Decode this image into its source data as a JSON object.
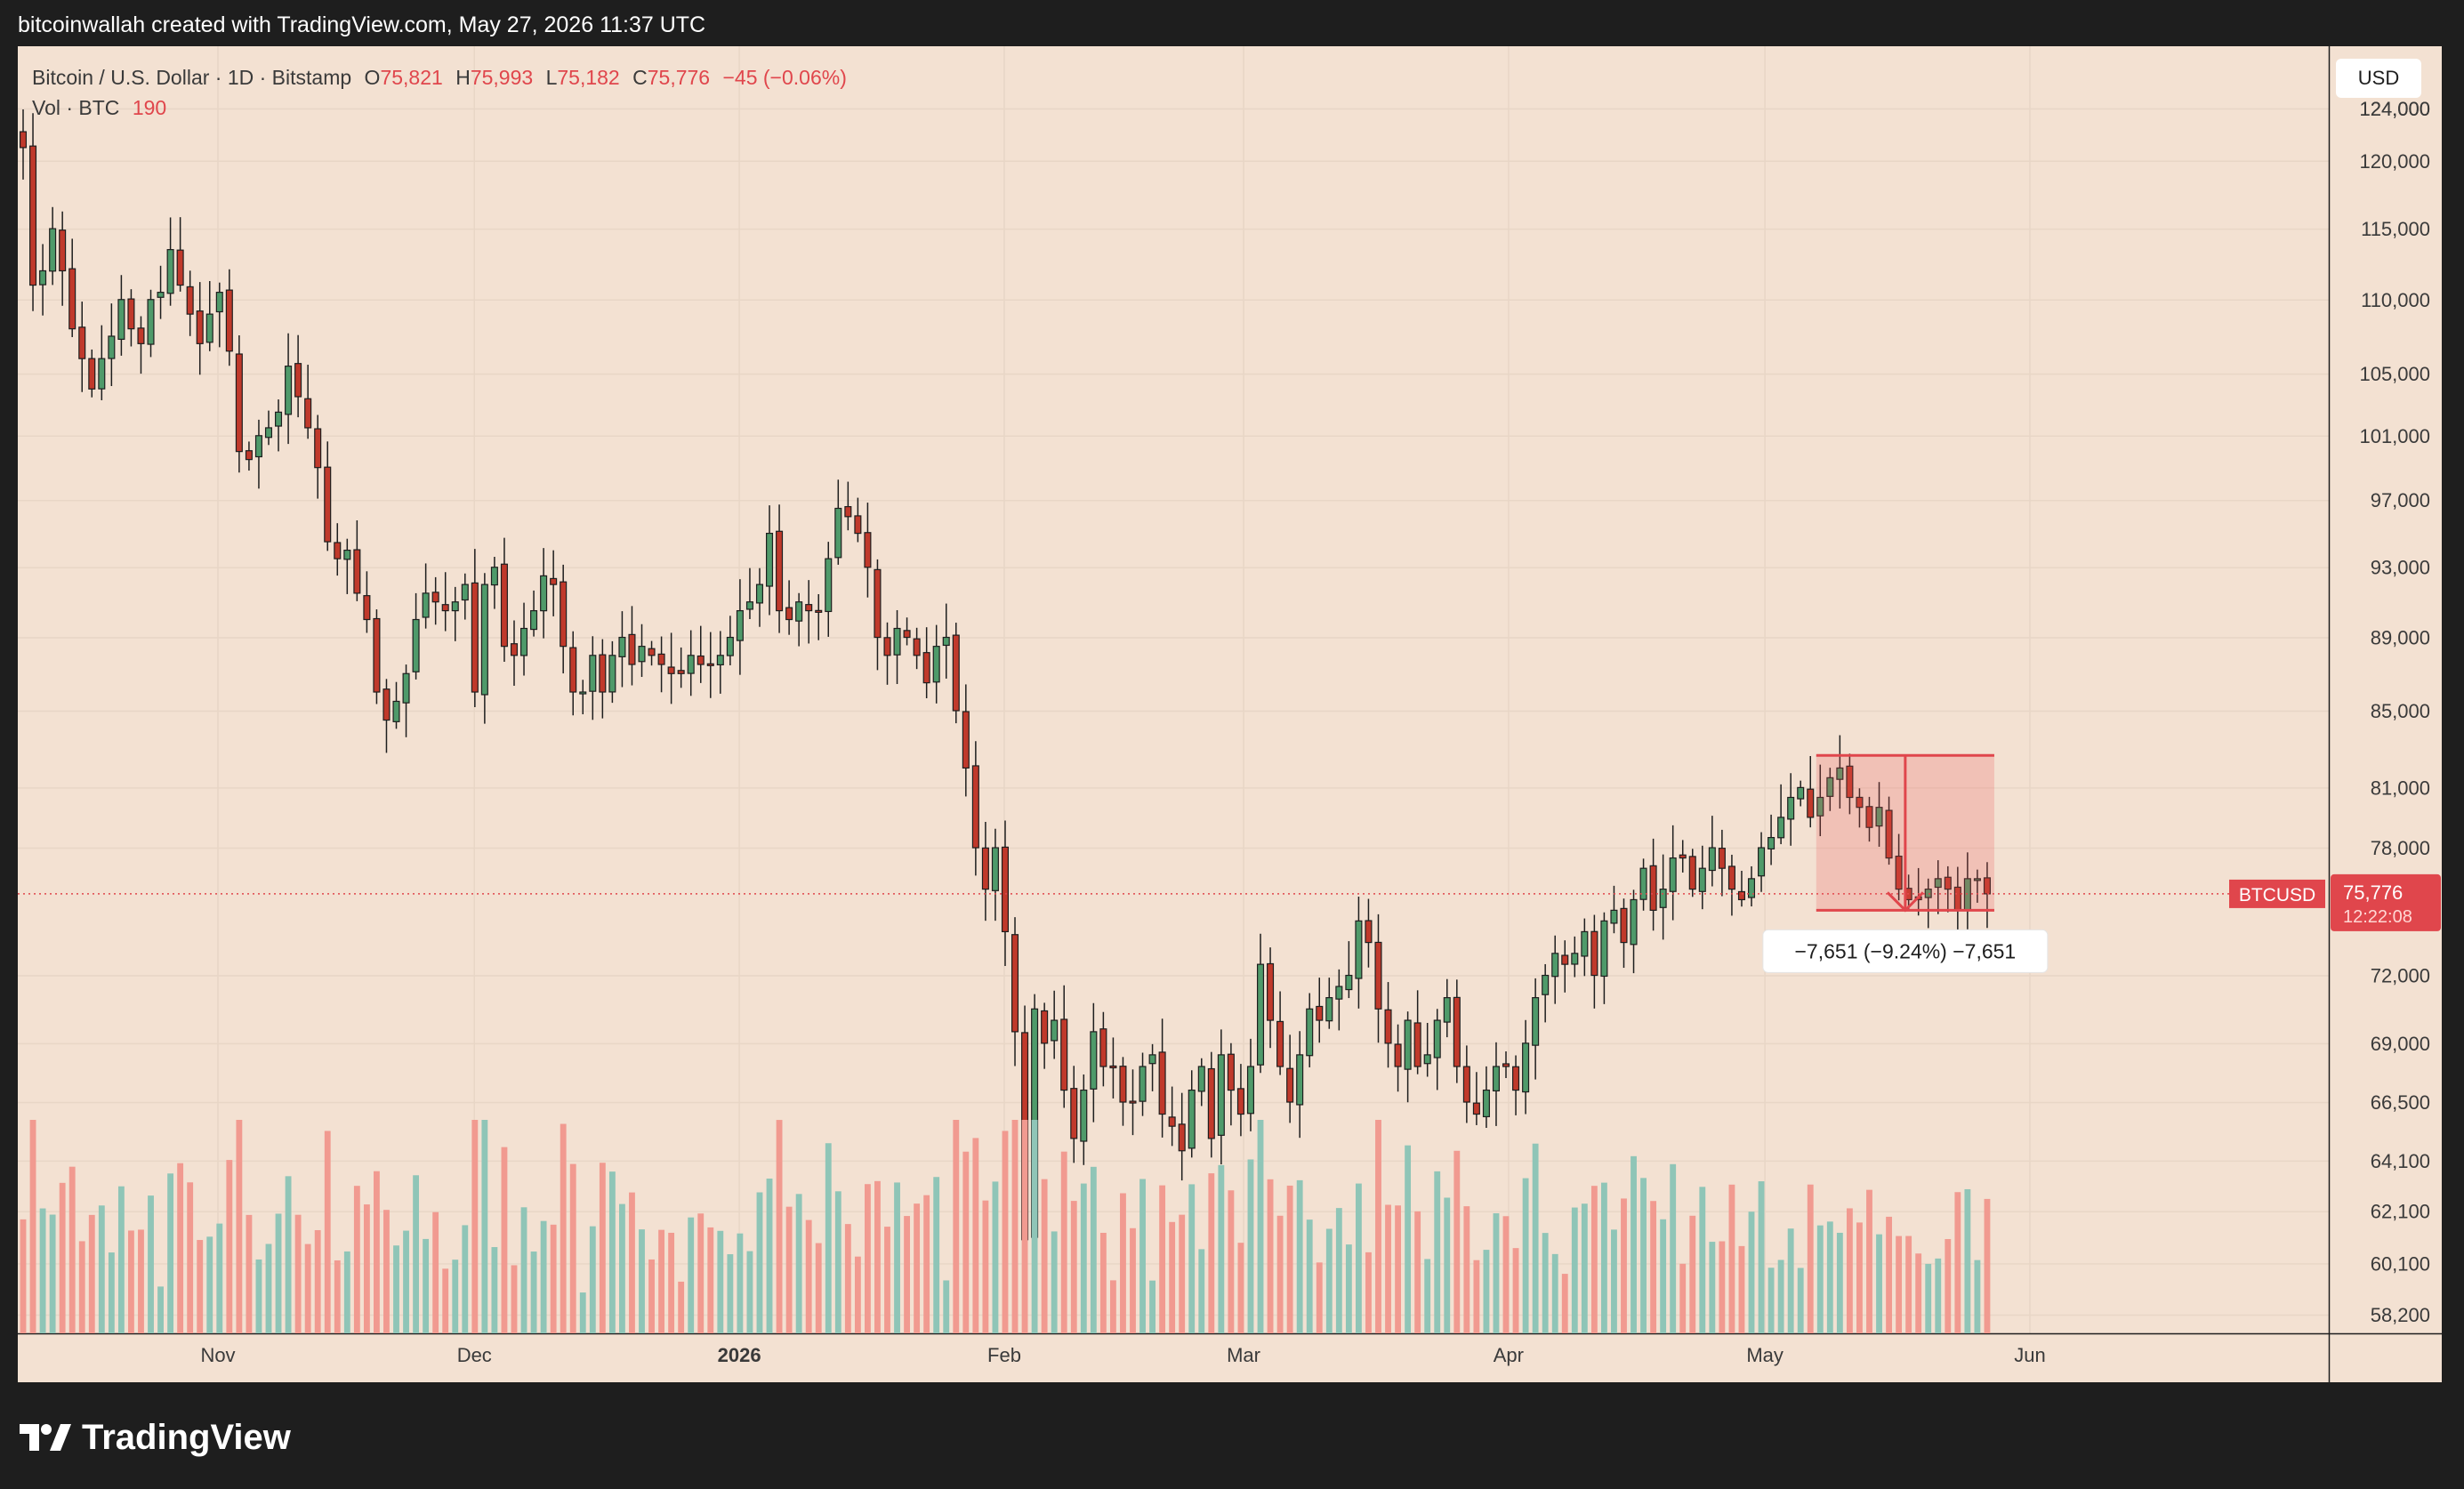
{
  "header": {
    "credit": "bitcoinwallah created with TradingView.com, May 27, 2026 11:37 UTC"
  },
  "legend": {
    "symbol": "Bitcoin / U.S. Dollar · 1D · Bitstamp",
    "open_label": "O",
    "open": "75,821",
    "high_label": "H",
    "high": "75,993",
    "low_label": "L",
    "low": "75,182",
    "close_label": "C",
    "close": "75,776",
    "change": "−45 (−0.06%)",
    "volume_label": "Vol · BTC",
    "volume": "190"
  },
  "currency_button": "USD",
  "last_price": {
    "symbol": "BTCUSD",
    "price": "75,776",
    "countdown": "12:22:08"
  },
  "measure": {
    "label": "−7,651 (−9.24%) −7,651"
  },
  "footer": {
    "brand": "TradingView"
  },
  "colors": {
    "up": "#26a69a",
    "down": "#ef5350",
    "volume_up": "#8fc5b7",
    "volume_down": "#f19a90",
    "background": "#f3e1d2"
  },
  "chart_data": {
    "type": "candlestick",
    "title": "Bitcoin / U.S. Dollar · 1D · Bitstamp",
    "y_scale": "log",
    "ylim": [
      57000,
      125000
    ],
    "y_ticks": [
      124000,
      120000,
      115000,
      110000,
      105000,
      101000,
      97000,
      93000,
      89000,
      85000,
      81000,
      78000,
      72000,
      69000,
      66500,
      64100,
      62100,
      60100,
      58200
    ],
    "y_tick_labels": [
      "124,000",
      "120,000",
      "115,000",
      "110,000",
      "105,000",
      "101,000",
      "97,000",
      "93,000",
      "89,000",
      "85,000",
      "81,000",
      "78,000",
      "72,000",
      "69,000",
      "66,500",
      "64,100",
      "62,100",
      "60,100",
      "58,200"
    ],
    "x_ticks": [
      {
        "date": "2025-11-01",
        "label": "Nov",
        "bold": false
      },
      {
        "date": "2025-12-01",
        "label": "Dec",
        "bold": false
      },
      {
        "date": "2026-01-01",
        "label": "2026",
        "bold": true
      },
      {
        "date": "2026-02-01",
        "label": "Feb",
        "bold": false
      },
      {
        "date": "2026-03-01",
        "label": "Mar",
        "bold": false
      },
      {
        "date": "2026-04-01",
        "label": "Apr",
        "bold": false
      },
      {
        "date": "2026-05-01",
        "label": "May",
        "bold": false
      },
      {
        "date": "2026-06-01",
        "label": "Jun",
        "bold": false
      }
    ],
    "x_range": [
      "2025-10-10",
      "2026-06-30"
    ],
    "candles_close": [
      121000,
      111000,
      112000,
      115000,
      112000,
      108000,
      106000,
      104000,
      106000,
      107500,
      110000,
      108000,
      107000,
      110000,
      110500,
      113500,
      111000,
      109000,
      107000,
      109000,
      110500,
      106500,
      100000,
      99500,
      101000,
      101500,
      102500,
      105500,
      103500,
      101500,
      99000,
      94500,
      93500,
      94000,
      91500,
      90000,
      86000,
      84500,
      85500,
      87000,
      90000,
      91500,
      91000,
      90500,
      91000,
      92000,
      86000,
      92000,
      93000,
      88500,
      88000,
      89500,
      90500,
      92500,
      92000,
      88500,
      86000,
      86000,
      88000,
      86000,
      88000,
      89000,
      87500,
      88500,
      88000,
      87500,
      87000,
      87000,
      88000,
      87500,
      87500,
      88000,
      89000,
      90500,
      91000,
      92000,
      95000,
      90500,
      90000,
      91000,
      90500,
      90500,
      93500,
      96500,
      96000,
      95000,
      93000,
      89000,
      88000,
      89500,
      89000,
      88000,
      86500,
      88500,
      89000,
      85000,
      82000,
      78000,
      76000,
      78000,
      74000,
      69500,
      61000,
      70500,
      69000,
      70000,
      67000,
      65000,
      67000,
      69500,
      68000,
      68000,
      66500,
      66500,
      68000,
      68500,
      66000,
      65500,
      64500,
      67000,
      68000,
      65000,
      68500,
      67000,
      66000,
      68000,
      72500,
      70000,
      68000,
      66500,
      68500,
      70500,
      70000,
      71000,
      71500,
      72000,
      74500,
      73500,
      70500,
      69000,
      68000,
      70000,
      68000,
      68500,
      70000,
      71000,
      68000,
      66500,
      66000,
      67000,
      68000,
      68000,
      67000,
      69000,
      71000,
      72000,
      73000,
      72500,
      73000,
      74000,
      72000,
      74500,
      75000,
      73500,
      75500,
      77000,
      75000,
      76000,
      77500,
      77500,
      76000,
      77000,
      78000,
      77000,
      76000,
      75500,
      76500,
      78000,
      78500,
      79500,
      80500,
      81000,
      79500,
      80500,
      81500,
      82000,
      80500,
      80000,
      79000,
      80000,
      77500,
      76000,
      75500,
      75500,
      76000,
      76500,
      76000,
      75000,
      76500,
      76500,
      75776
    ],
    "current_price": 75776,
    "measure": {
      "from_date": "2026-05-07",
      "to_date": "2026-05-27",
      "top": 82650,
      "bottom": 75000,
      "change": -7651,
      "change_pct": -9.24
    }
  }
}
